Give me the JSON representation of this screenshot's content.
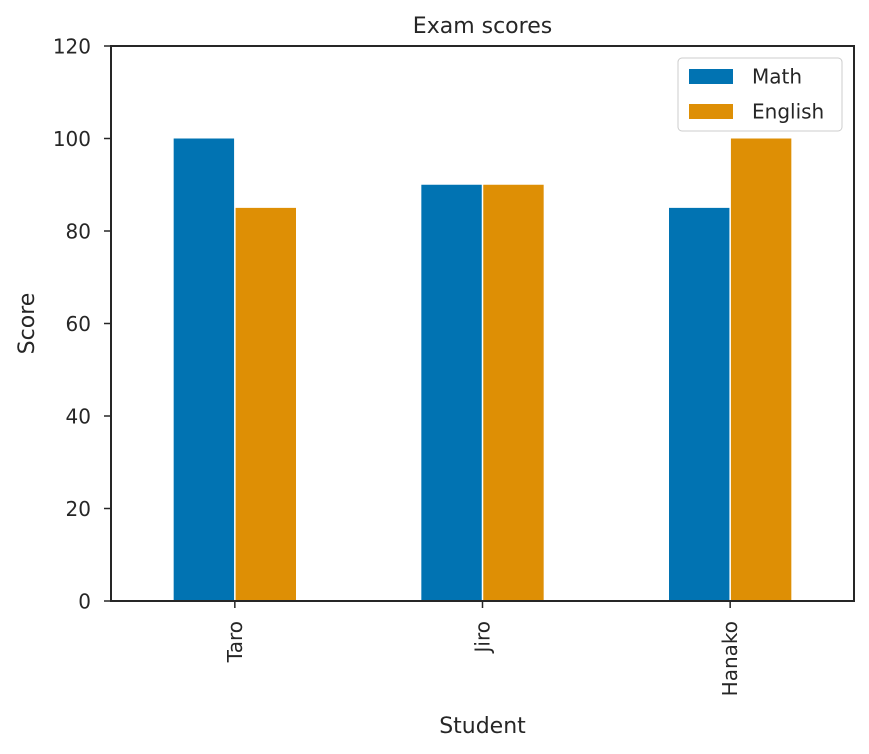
{
  "chart_data": {
    "type": "bar",
    "title": "Exam scores",
    "xlabel": "Student",
    "ylabel": "Score",
    "categories": [
      "Taro",
      "Jiro",
      "Hanako"
    ],
    "series": [
      {
        "name": "Math",
        "values": [
          100,
          90,
          85
        ],
        "color": "#0173b2"
      },
      {
        "name": "English",
        "values": [
          85,
          90,
          100
        ],
        "color": "#de8f05"
      }
    ],
    "ylim": [
      0,
      120
    ],
    "yticks": [
      0,
      20,
      40,
      60,
      80,
      100,
      120
    ],
    "grid": false,
    "legend_position": "top-right"
  }
}
